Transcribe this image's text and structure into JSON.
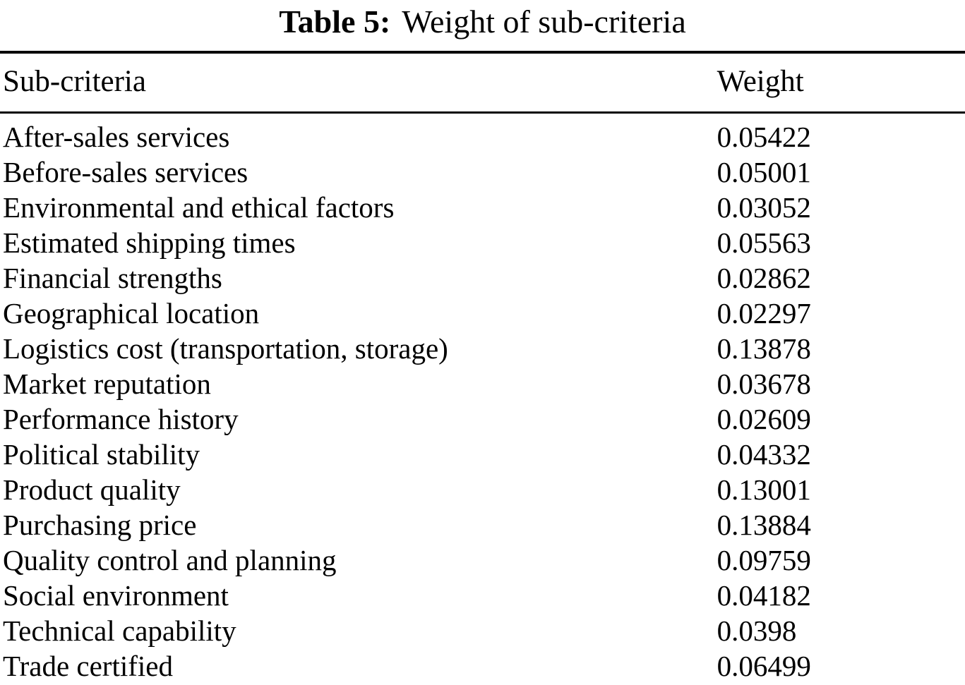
{
  "table": {
    "title_label": "Table 5:",
    "title_text": "Weight of sub-criteria",
    "columns": [
      "Sub-criteria",
      "Weight"
    ],
    "rows": [
      {
        "name": "After-sales services",
        "weight": "0.05422"
      },
      {
        "name": "Before-sales services",
        "weight": "0.05001"
      },
      {
        "name": "Environmental and ethical factors",
        "weight": "0.03052"
      },
      {
        "name": "Estimated shipping times",
        "weight": "0.05563"
      },
      {
        "name": "Financial strengths",
        "weight": "0.02862"
      },
      {
        "name": "Geographical location",
        "weight": "0.02297"
      },
      {
        "name": "Logistics cost (transportation, storage)",
        "weight": "0.13878"
      },
      {
        "name": "Market reputation",
        "weight": "0.03678"
      },
      {
        "name": "Performance history",
        "weight": "0.02609"
      },
      {
        "name": "Political stability",
        "weight": "0.04332"
      },
      {
        "name": "Product quality",
        "weight": "0.13001"
      },
      {
        "name": "Purchasing price",
        "weight": "0.13884"
      },
      {
        "name": "Quality control and planning",
        "weight": "0.09759"
      },
      {
        "name": "Social environment",
        "weight": "0.04182"
      },
      {
        "name": "Technical capability",
        "weight": "0.0398"
      },
      {
        "name": "Trade certified",
        "weight": "0.06499"
      }
    ]
  }
}
